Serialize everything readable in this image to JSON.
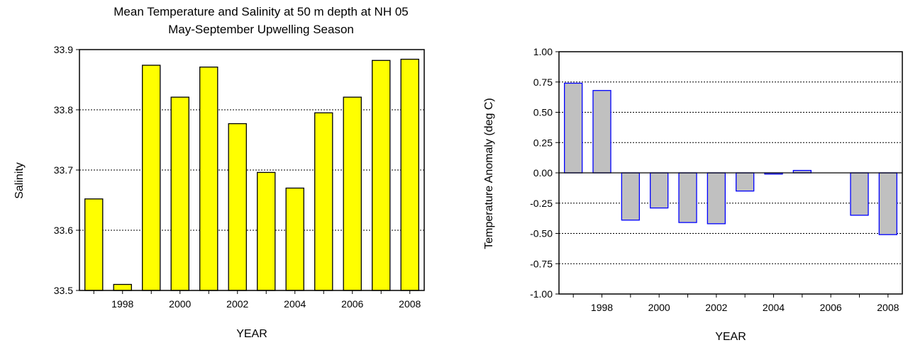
{
  "chart_data": [
    {
      "type": "bar",
      "title": "Mean Temperature and Salinity at 50 m depth at NH 05",
      "subtitle": "May-September Upwelling Season",
      "xlabel": "YEAR",
      "ylabel": "Salinity",
      "x": [
        1997,
        1998,
        1999,
        2000,
        2001,
        2002,
        2003,
        2004,
        2005,
        2006,
        2007,
        2008
      ],
      "values": [
        33.652,
        33.51,
        33.874,
        33.821,
        33.871,
        33.777,
        33.696,
        33.67,
        33.795,
        33.821,
        33.882,
        33.884
      ],
      "ylim": [
        33.5,
        33.9
      ],
      "yticks": [
        "33.5",
        "33.6",
        "33.7",
        "33.8",
        "33.9"
      ],
      "xticks": [
        "1998",
        "2000",
        "2002",
        "2004",
        "2006",
        "2008"
      ],
      "bar_color": "#ffff00",
      "grid": true
    },
    {
      "type": "bar",
      "xlabel": "YEAR",
      "ylabel": "Temperature Anomaly (deg C)",
      "x": [
        1997,
        1998,
        1999,
        2000,
        2001,
        2002,
        2003,
        2004,
        2005,
        2006,
        2007,
        2008
      ],
      "values": [
        0.74,
        0.68,
        -0.39,
        -0.29,
        -0.41,
        -0.42,
        -0.15,
        -0.01,
        0.02,
        0,
        -0.35,
        -0.51
      ],
      "ylim": [
        -1.0,
        1.0
      ],
      "yticks": [
        "-1.00",
        "-0.75",
        "-0.50",
        "-0.25",
        "0.00",
        "0.25",
        "0.50",
        "0.75",
        "1.00"
      ],
      "xticks": [
        "1998",
        "2000",
        "2002",
        "2004",
        "2006",
        "2008"
      ],
      "bar_color": "#c0c0c0",
      "bar_edge_color": "#0000ff",
      "grid": true
    }
  ]
}
